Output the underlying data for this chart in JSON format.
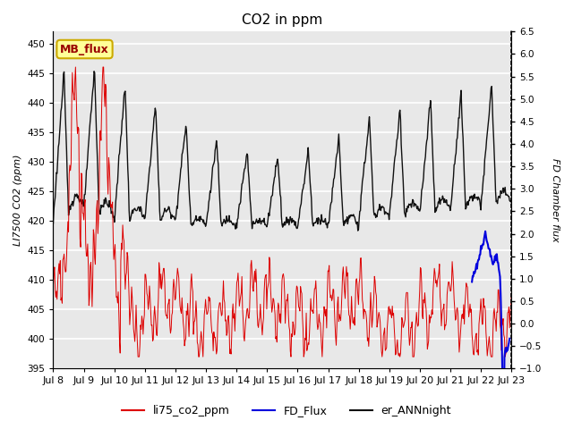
{
  "title": "CO2 in ppm",
  "ylabel_left": "LI7500 CO2 (ppm)",
  "ylabel_right": "FD Chamber flux",
  "ylim_left": [
    395,
    452
  ],
  "ylim_right": [
    -1.0,
    6.5
  ],
  "yticks_left": [
    395,
    400,
    405,
    410,
    415,
    420,
    425,
    430,
    435,
    440,
    445,
    450
  ],
  "yticks_right": [
    -1.0,
    -0.5,
    0.0,
    0.5,
    1.0,
    1.5,
    2.0,
    2.5,
    3.0,
    3.5,
    4.0,
    4.5,
    5.0,
    5.5,
    6.0,
    6.5
  ],
  "xticklabels": [
    "Jul 8",
    "Jul 9",
    "Jul 10",
    "Jul 11",
    "Jul 12",
    "Jul 13",
    "Jul 14",
    "Jul 15",
    "Jul 16",
    "Jul 17",
    "Jul 18",
    "Jul 19",
    "Jul 20",
    "Jul 21",
    "Jul 22",
    "Jul 23"
  ],
  "colors": {
    "red": "#dd0000",
    "blue": "#0000dd",
    "black": "#111111",
    "annotation_bg": "#ffff99",
    "annotation_border": "#ccaa00",
    "annotation_text": "#990000"
  },
  "annotation_text": "MB_flux",
  "legend_entries": [
    "li75_co2_ppm",
    "FD_Flux",
    "er_ANNnight"
  ],
  "background_color": "#e8e8e8",
  "grid_color": "#ffffff"
}
